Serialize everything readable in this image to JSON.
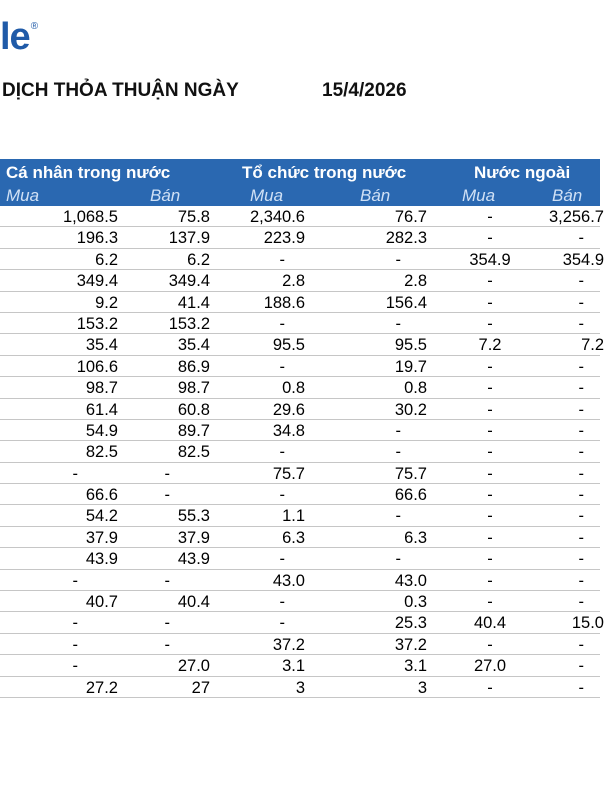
{
  "logo": {
    "text": "le",
    "mark": "®"
  },
  "title": "DỊCH THỎA THUẬN NGÀY",
  "date": "15/4/2026",
  "groups": [
    "Cá nhân trong nước",
    "Tổ chức trong nước",
    "Nước ngoài"
  ],
  "subheaders": [
    "Mua",
    "Bán",
    "Mua",
    "Bán",
    "Mua",
    "Bán"
  ],
  "rows": [
    [
      "1,068.5",
      "75.8",
      "2,340.6",
      "76.7",
      "-",
      "3,256.7"
    ],
    [
      "196.3",
      "137.9",
      "223.9",
      "282.3",
      "-",
      "-"
    ],
    [
      "6.2",
      "6.2",
      "-",
      "-",
      "354.9",
      "354.9"
    ],
    [
      "349.4",
      "349.4",
      "2.8",
      "2.8",
      "-",
      "-"
    ],
    [
      "9.2",
      "41.4",
      "188.6",
      "156.4",
      "-",
      "-"
    ],
    [
      "153.2",
      "153.2",
      "-",
      "-",
      "-",
      "-"
    ],
    [
      "35.4",
      "35.4",
      "95.5",
      "95.5",
      "7.2",
      "7.2"
    ],
    [
      "106.6",
      "86.9",
      "-",
      "19.7",
      "-",
      "-"
    ],
    [
      "98.7",
      "98.7",
      "0.8",
      "0.8",
      "-",
      "-"
    ],
    [
      "61.4",
      "60.8",
      "29.6",
      "30.2",
      "-",
      "-"
    ],
    [
      "54.9",
      "89.7",
      "34.8",
      "-",
      "-",
      "-"
    ],
    [
      "82.5",
      "82.5",
      "-",
      "-",
      "-",
      "-"
    ],
    [
      "-",
      "-",
      "75.7",
      "75.7",
      "-",
      "-"
    ],
    [
      "66.6",
      "-",
      "-",
      "66.6",
      "-",
      "-"
    ],
    [
      "54.2",
      "55.3",
      "1.1",
      "-",
      "-",
      "-"
    ],
    [
      "37.9",
      "37.9",
      "6.3",
      "6.3",
      "-",
      "-"
    ],
    [
      "43.9",
      "43.9",
      "-",
      "-",
      "-",
      "-"
    ],
    [
      "-",
      "-",
      "43.0",
      "43.0",
      "-",
      "-"
    ],
    [
      "40.7",
      "40.4",
      "-",
      "0.3",
      "-",
      "-"
    ],
    [
      "-",
      "-",
      "-",
      "25.3",
      "40.4",
      "15.0"
    ],
    [
      "-",
      "-",
      "37.2",
      "37.2",
      "-",
      "-"
    ],
    [
      "-",
      "27.0",
      "3.1",
      "3.1",
      "27.0",
      "-"
    ],
    [
      "27.2",
      "27",
      "3",
      "3",
      "-",
      "-"
    ]
  ]
}
